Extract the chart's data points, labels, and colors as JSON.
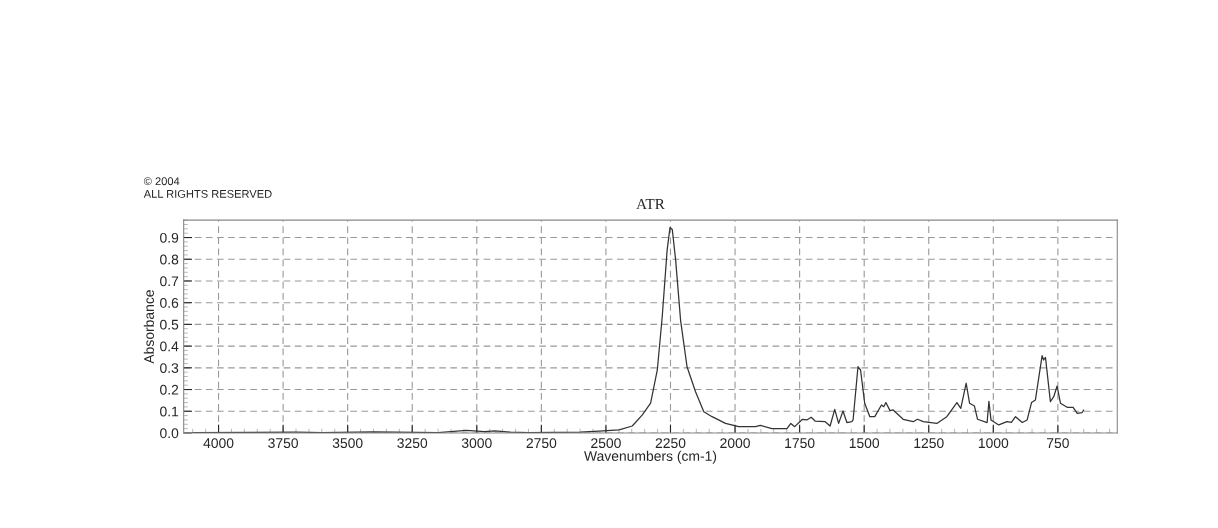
{
  "chart_data": {
    "type": "line",
    "title": "ATR",
    "xlabel": "Wavenumbers (cm-1)",
    "ylabel": "Absorbance",
    "annotations": [
      "© 2004",
      "ALL RIGHTS RESERVED"
    ],
    "xlim": [
      4135,
      520
    ],
    "xticks": [
      4000,
      3750,
      3500,
      3250,
      3000,
      2750,
      2500,
      2250,
      2000,
      1750,
      1500,
      1250,
      1000,
      750
    ],
    "ylim": [
      0,
      0.98
    ],
    "yticks": [
      {
        "value": 0,
        "label": "0.0"
      },
      0.1,
      0.2,
      0.3,
      0.4,
      0.5,
      0.6,
      0.7,
      0.8,
      0.9
    ],
    "grid": true,
    "line_style": "solid",
    "series": [
      {
        "color": "#333333",
        "x": [
          4100,
          3700,
          3600,
          3400,
          3150,
          3040,
          2970,
          2930,
          2870,
          2800,
          2600,
          2527,
          2449,
          2398,
          2359,
          2327,
          2301,
          2282,
          2263,
          2252,
          2243,
          2230,
          2211,
          2186,
          2153,
          2121,
          2089,
          2037,
          1986,
          1921,
          1902,
          1857,
          1799,
          1784,
          1769,
          1739,
          1722,
          1705,
          1690,
          1651,
          1632,
          1614,
          1599,
          1582,
          1567,
          1548,
          1543,
          1524,
          1514,
          1498,
          1478,
          1459,
          1433,
          1424,
          1416,
          1400,
          1388,
          1349,
          1310,
          1294,
          1271,
          1219,
          1180,
          1141,
          1126,
          1105,
          1092,
          1073,
          1061,
          1024,
          1017,
          1009,
          979,
          947,
          930,
          914,
          888,
          869,
          852,
          837,
          811,
          805,
          798,
          779,
          766,
          753,
          740,
          714,
          691,
          675,
          656,
          650
        ],
        "values": [
          0.002,
          0.004,
          0.002,
          0.005,
          0.002,
          0.012,
          0.006,
          0.01,
          0.004,
          0.002,
          0.004,
          0.009,
          0.014,
          0.032,
          0.083,
          0.137,
          0.29,
          0.535,
          0.842,
          0.946,
          0.937,
          0.796,
          0.52,
          0.305,
          0.19,
          0.098,
          0.075,
          0.044,
          0.029,
          0.029,
          0.035,
          0.02,
          0.02,
          0.044,
          0.029,
          0.063,
          0.06,
          0.072,
          0.055,
          0.052,
          0.032,
          0.109,
          0.044,
          0.101,
          0.048,
          0.052,
          0.06,
          0.305,
          0.29,
          0.137,
          0.075,
          0.075,
          0.129,
          0.121,
          0.14,
          0.103,
          0.106,
          0.063,
          0.052,
          0.063,
          0.052,
          0.044,
          0.075,
          0.14,
          0.113,
          0.229,
          0.137,
          0.124,
          0.063,
          0.048,
          0.146,
          0.06,
          0.037,
          0.052,
          0.049,
          0.075,
          0.048,
          0.06,
          0.14,
          0.152,
          0.356,
          0.336,
          0.348,
          0.144,
          0.167,
          0.216,
          0.137,
          0.118,
          0.118,
          0.09,
          0.094,
          0.106
        ]
      }
    ]
  }
}
